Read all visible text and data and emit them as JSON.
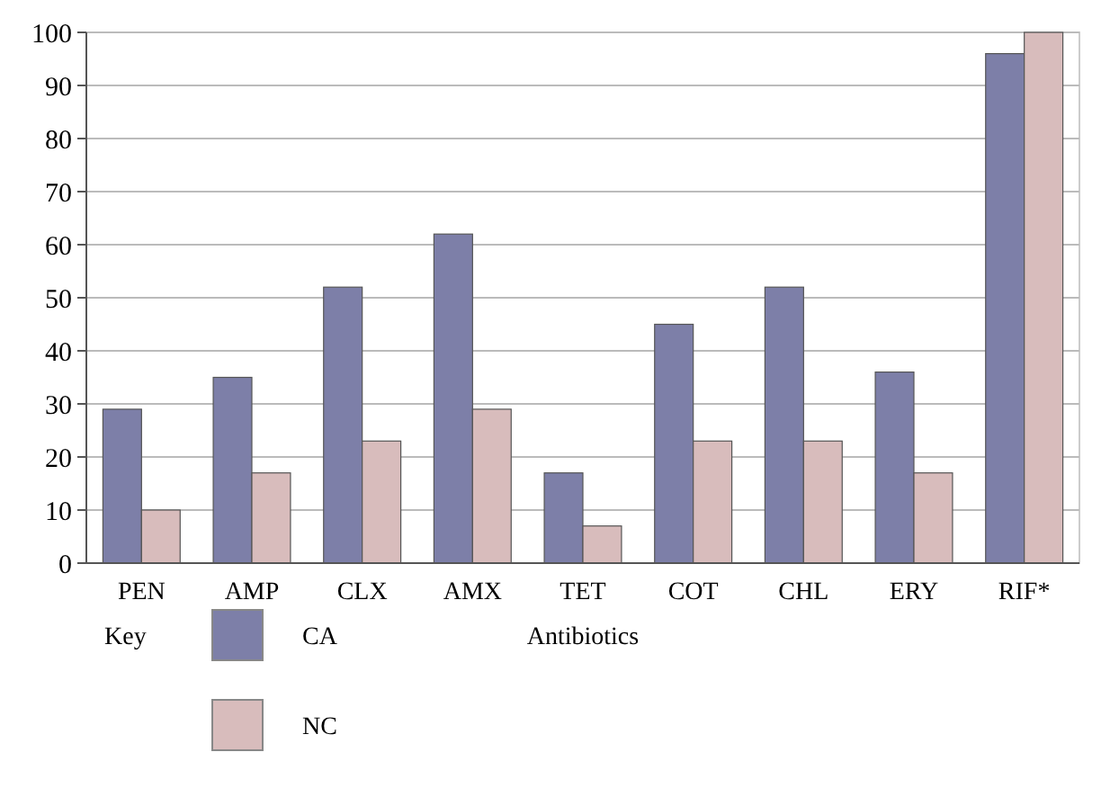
{
  "chart_data": {
    "type": "bar",
    "categories": [
      "PEN",
      "AMP",
      "CLX",
      "AMX",
      "TET",
      "COT",
      "CHL",
      "ERY",
      "RIF*"
    ],
    "series": [
      {
        "name": "CA",
        "color": "#7d7fa8",
        "values": [
          29,
          35,
          52,
          62,
          17,
          45,
          52,
          36,
          96
        ]
      },
      {
        "name": "NC",
        "color": "#d8bcbc",
        "values": [
          10,
          17,
          23,
          29,
          7,
          23,
          23,
          17,
          100
        ]
      }
    ],
    "xlabel": "Antibiotics",
    "legend_title": "Key",
    "ylim": [
      0,
      100
    ],
    "yticks": [
      0,
      10,
      20,
      30,
      40,
      50,
      60,
      70,
      80,
      90,
      100
    ],
    "grid": "y",
    "legend": "bottom"
  }
}
